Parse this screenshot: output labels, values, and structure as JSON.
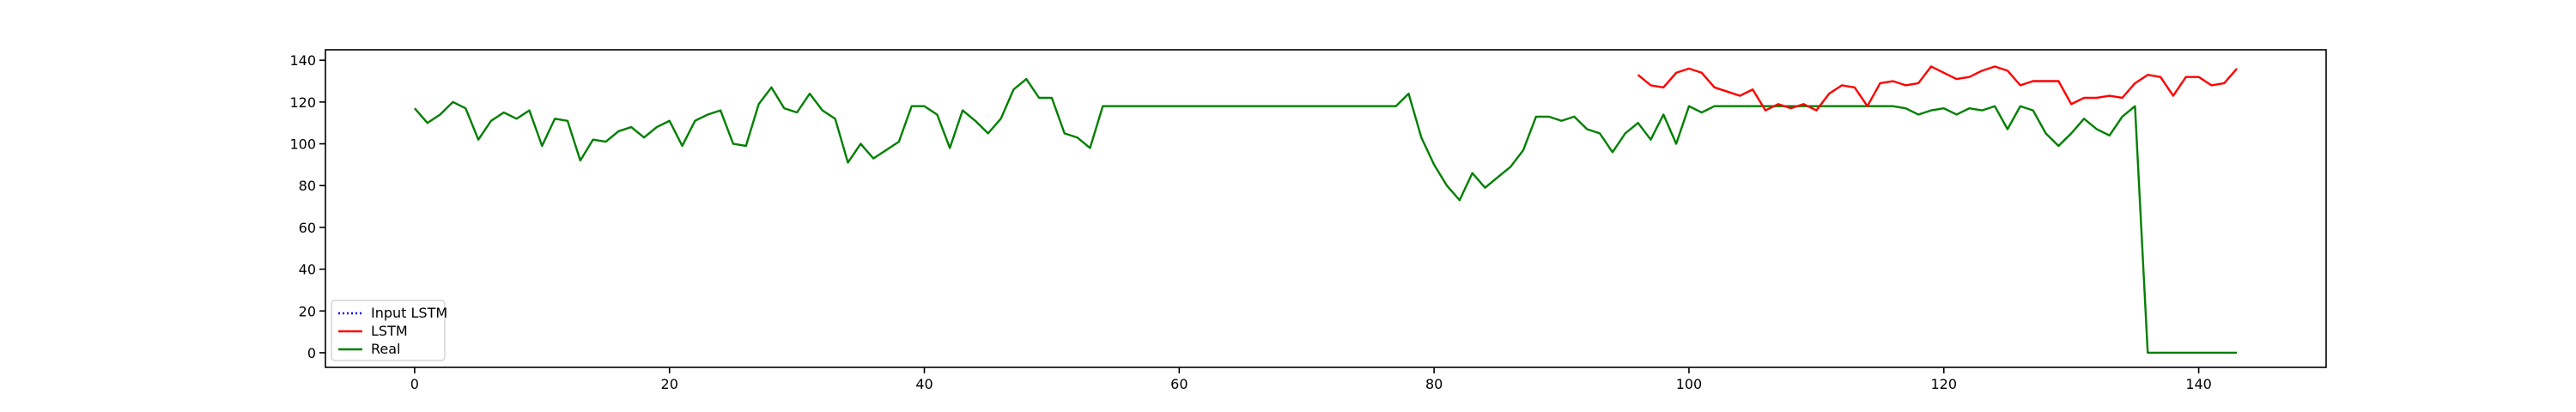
{
  "chart_data": {
    "type": "line",
    "title": "",
    "xlabel": "",
    "ylabel": "",
    "xlim": [
      -7,
      150
    ],
    "ylim": [
      -7,
      145
    ],
    "xticks": [
      0,
      20,
      40,
      60,
      80,
      100,
      120,
      140
    ],
    "yticks": [
      0,
      20,
      40,
      60,
      80,
      100,
      120,
      140
    ],
    "grid": false,
    "legend_position": "bottom-left",
    "legend": [
      {
        "label": "Input LSTM",
        "color": "#0000ff",
        "style": "dotted"
      },
      {
        "label": "LSTM",
        "color": "#ff0000",
        "style": "solid"
      },
      {
        "label": "Real",
        "color": "#008000",
        "style": "solid"
      }
    ],
    "series": [
      {
        "name": "Input LSTM",
        "color": "#0000ff",
        "style": "dotted",
        "x": [],
        "y": []
      },
      {
        "name": "Real",
        "color": "#008000",
        "style": "solid",
        "x": [
          0,
          1,
          2,
          3,
          4,
          5,
          6,
          7,
          8,
          9,
          10,
          11,
          12,
          13,
          14,
          15,
          16,
          17,
          18,
          19,
          20,
          21,
          22,
          23,
          24,
          25,
          26,
          27,
          28,
          29,
          30,
          31,
          32,
          33,
          34,
          35,
          36,
          37,
          38,
          39,
          40,
          41,
          42,
          43,
          44,
          45,
          46,
          47,
          48,
          49,
          50,
          51,
          52,
          53,
          54,
          77,
          78,
          79,
          80,
          81,
          82,
          83,
          84,
          85,
          86,
          87,
          88,
          89,
          90,
          91,
          92,
          93,
          94,
          95,
          96,
          97,
          98,
          99,
          100,
          101,
          102,
          103,
          104,
          105,
          106,
          107,
          108,
          109,
          110,
          111,
          112,
          113,
          114,
          115,
          116,
          117,
          118,
          119,
          120,
          121,
          122,
          123,
          124,
          125,
          126,
          127,
          128,
          129,
          130,
          131,
          132,
          133,
          134,
          135,
          136,
          137,
          138,
          139,
          140,
          141,
          142,
          143
        ],
        "y": [
          117,
          110,
          114,
          120,
          117,
          102,
          111,
          115,
          112,
          116,
          99,
          112,
          111,
          92,
          102,
          101,
          106,
          108,
          103,
          108,
          111,
          99,
          111,
          114,
          116,
          100,
          99,
          119,
          127,
          117,
          115,
          124,
          116,
          112,
          91,
          100,
          93,
          97,
          101,
          118,
          118,
          114,
          98,
          116,
          111,
          105,
          112,
          126,
          131,
          122,
          122,
          105,
          103,
          98,
          118,
          118,
          124,
          103,
          90,
          80,
          73,
          86,
          79,
          84,
          89,
          97,
          113,
          113,
          111,
          113,
          107,
          105,
          96,
          105,
          110,
          102,
          114,
          100,
          118,
          115,
          118,
          118,
          118,
          118,
          118,
          118,
          118,
          118,
          118,
          118,
          118,
          118,
          118,
          118,
          118,
          117,
          114,
          116,
          117,
          114,
          117,
          116,
          118,
          107,
          118,
          116,
          105,
          99,
          105,
          112,
          107,
          104,
          113,
          118,
          0,
          0,
          0,
          0,
          0,
          0,
          0,
          0
        ]
      },
      {
        "name": "LSTM",
        "color": "#ff0000",
        "style": "solid",
        "x": [
          96,
          97,
          98,
          99,
          100,
          101,
          102,
          103,
          104,
          105,
          106,
          107,
          108,
          109,
          110,
          111,
          112,
          113,
          114,
          115,
          116,
          117,
          118,
          119,
          120,
          121,
          122,
          123,
          124,
          125,
          126,
          127,
          128,
          129,
          130,
          131,
          132,
          133,
          134,
          135,
          136,
          137,
          138,
          139,
          140,
          141,
          142,
          143
        ],
        "y": [
          133,
          128,
          127,
          134,
          136,
          134,
          127,
          125,
          123,
          126,
          116,
          119,
          117,
          119,
          116,
          124,
          128,
          127,
          118,
          129,
          130,
          128,
          129,
          137,
          134,
          131,
          132,
          135,
          137,
          135,
          128,
          130,
          130,
          130,
          119,
          122,
          122,
          123,
          122,
          129,
          133,
          132,
          123,
          132,
          132,
          128,
          129,
          136
        ]
      }
    ]
  }
}
